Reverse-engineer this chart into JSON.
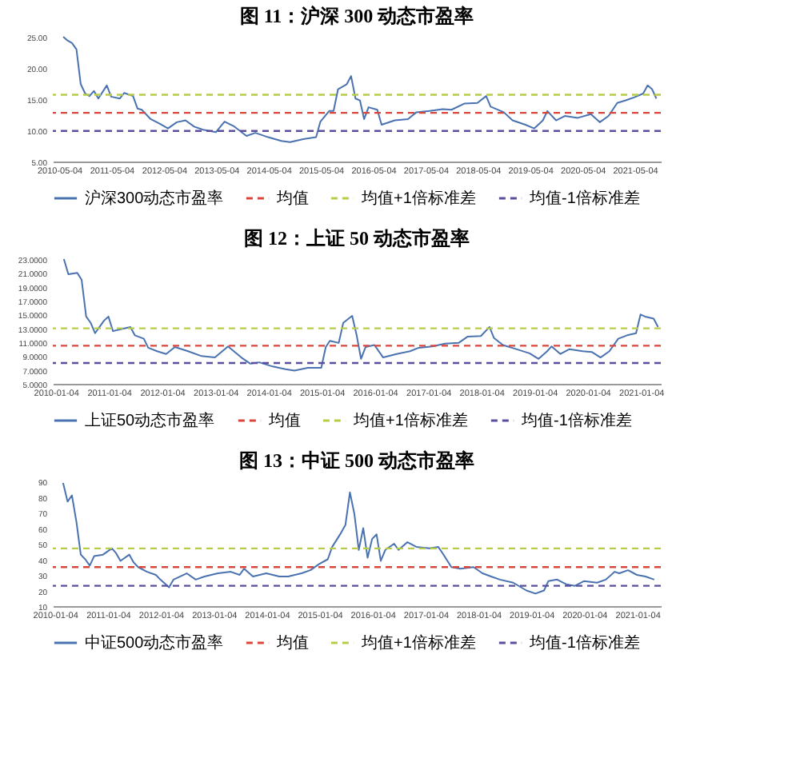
{
  "chart_data": [
    {
      "type": "line",
      "title": "图 11：沪深 300 动态市盈率",
      "legend": "bottom",
      "line_style": "solid",
      "xlim": [
        "2010-03-20",
        "2021-11-01"
      ],
      "xticks": [
        "2010-05-04",
        "2011-05-04",
        "2012-05-04",
        "2013-05-04",
        "2014-05-04",
        "2015-05-04",
        "2016-05-04",
        "2017-05-04",
        "2018-05-04",
        "2019-05-04",
        "2020-05-04",
        "2021-05-04"
      ],
      "ylim": [
        5,
        25
      ],
      "yticks": [
        {
          "value": 5,
          "label": "5.00"
        },
        {
          "value": 10,
          "label": "10.00"
        },
        {
          "value": 15,
          "label": "15.00"
        },
        {
          "value": 20,
          "label": "20.00"
        },
        {
          "value": 25,
          "label": "25.00"
        }
      ],
      "ref_lines": [
        {
          "axis": "y",
          "value": 12.8,
          "label": "均值",
          "color": "#d9463c",
          "line_style": "dashed"
        },
        {
          "axis": "y",
          "value": 15.7,
          "label": "均值+1倍标准差",
          "color": "#b8cc4a",
          "line_style": "dashed"
        },
        {
          "axis": "y",
          "value": 9.9,
          "label": "均值-1倍标准差",
          "color": "#5a4f9c",
          "line_style": "dashed"
        }
      ],
      "series": [
        {
          "name": "沪深300动态市盈率",
          "color": "#4a72b0",
          "x": [
            "2010-06",
            "2010-07",
            "2010-08",
            "2010-09",
            "2010-10",
            "2010-11",
            "2010-12",
            "2011-01",
            "2011-02",
            "2011-04",
            "2011-05",
            "2011-07",
            "2011-08",
            "2011-10",
            "2011-11",
            "2011-12",
            "2012-02",
            "2012-04",
            "2012-06",
            "2012-08",
            "2012-10",
            "2012-12",
            "2013-02",
            "2013-05",
            "2013-07",
            "2013-09",
            "2013-12",
            "2014-02",
            "2014-05",
            "2014-08",
            "2014-10",
            "2015-01",
            "2015-04",
            "2015-05",
            "2015-07",
            "2015-08",
            "2015-09",
            "2015-11",
            "2015-12",
            "2016-01",
            "2016-02",
            "2016-03",
            "2016-04",
            "2016-06",
            "2016-07",
            "2016-10",
            "2017-01",
            "2017-03",
            "2017-06",
            "2017-09",
            "2017-11",
            "2018-02",
            "2018-05",
            "2018-07",
            "2018-08",
            "2018-11",
            "2019-01",
            "2019-04",
            "2019-06",
            "2019-08",
            "2019-09",
            "2019-11",
            "2020-01",
            "2020-04",
            "2020-07",
            "2020-09",
            "2020-11",
            "2021-01",
            "2021-03",
            "2021-05",
            "2021-07",
            "2021-08",
            "2021-09",
            "2021-10"
          ],
          "values": [
            25.0,
            24.4,
            24.0,
            23.0,
            17.4,
            15.9,
            15.5,
            16.3,
            15.1,
            17.2,
            15.4,
            15.1,
            16.0,
            15.5,
            13.5,
            13.3,
            11.8,
            11.1,
            10.3,
            11.3,
            11.6,
            10.6,
            10.1,
            9.7,
            11.4,
            10.7,
            9.1,
            9.6,
            8.9,
            8.3,
            8.1,
            8.6,
            8.9,
            11.4,
            13.1,
            13.1,
            16.6,
            17.4,
            18.7,
            15.1,
            14.8,
            11.8,
            13.7,
            13.3,
            10.9,
            11.6,
            11.8,
            12.9,
            13.1,
            13.4,
            13.3,
            14.3,
            14.4,
            15.5,
            13.8,
            12.9,
            11.6,
            10.9,
            10.3,
            11.6,
            13.1,
            11.6,
            12.3,
            12.0,
            12.6,
            11.3,
            12.3,
            14.4,
            14.8,
            15.3,
            15.9,
            17.2,
            16.6,
            15.1
          ]
        }
      ]
    },
    {
      "type": "line",
      "title": "图 12：上证 50 动态市盈率",
      "legend": "bottom",
      "line_style": "solid",
      "xlim": [
        "2009-12-15",
        "2021-05-20"
      ],
      "xticks": [
        "2010-01-04",
        "2011-01-04",
        "2012-01-04",
        "2013-01-04",
        "2014-01-04",
        "2015-01-04",
        "2016-01-04",
        "2017-01-04",
        "2018-01-04",
        "2019-01-04",
        "2020-01-04",
        "2021-01-04"
      ],
      "ylim": [
        5,
        23
      ],
      "yticks": [
        {
          "value": 5,
          "label": "5.0000"
        },
        {
          "value": 7,
          "label": "7.0000"
        },
        {
          "value": 9,
          "label": "9.0000"
        },
        {
          "value": 11,
          "label": "11.0000"
        },
        {
          "value": 13,
          "label": "13.0000"
        },
        {
          "value": 15,
          "label": "15.0000"
        },
        {
          "value": 17,
          "label": "17.0000"
        },
        {
          "value": 19,
          "label": "19.0000"
        },
        {
          "value": 21,
          "label": "21.0000"
        },
        {
          "value": 23,
          "label": "23.0000"
        }
      ],
      "ref_lines": [
        {
          "axis": "y",
          "value": 10.5,
          "label": "均值",
          "color": "#d9463c",
          "line_style": "dashed"
        },
        {
          "axis": "y",
          "value": 13.0,
          "label": "均值+1倍标准差",
          "color": "#b8cc4a",
          "line_style": "dashed"
        },
        {
          "axis": "y",
          "value": 8.0,
          "label": "均值-1倍标准差",
          "color": "#5a4f9c",
          "line_style": "dashed"
        }
      ],
      "series": [
        {
          "name": "上证50动态市盈率",
          "color": "#4a72b0",
          "x": [
            "2010-03",
            "2010-04",
            "2010-06",
            "2010-07",
            "2010-08",
            "2010-09",
            "2010-10",
            "2010-12",
            "2011-01",
            "2011-02",
            "2011-04",
            "2011-06",
            "2011-07",
            "2011-09",
            "2011-10",
            "2011-12",
            "2012-02",
            "2012-04",
            "2012-07",
            "2012-10",
            "2013-01",
            "2013-04",
            "2013-07",
            "2013-09",
            "2013-11",
            "2014-02",
            "2014-05",
            "2014-07",
            "2014-10",
            "2015-01",
            "2015-02",
            "2015-03",
            "2015-05",
            "2015-06",
            "2015-08",
            "2015-09",
            "2015-10",
            "2015-11",
            "2016-01",
            "2016-03",
            "2016-06",
            "2016-09",
            "2016-11",
            "2017-02",
            "2017-05",
            "2017-08",
            "2017-10",
            "2018-01",
            "2018-03",
            "2018-04",
            "2018-06",
            "2018-09",
            "2018-12",
            "2019-02",
            "2019-04",
            "2019-05",
            "2019-07",
            "2019-09",
            "2019-12",
            "2020-02",
            "2020-04",
            "2020-06",
            "2020-08",
            "2020-10",
            "2020-12",
            "2021-01",
            "2021-02",
            "2021-04",
            "2021-05"
          ],
          "values": [
            23.0,
            20.8,
            21.0,
            20.0,
            14.7,
            13.8,
            12.3,
            14.1,
            14.7,
            12.6,
            12.9,
            13.2,
            12.0,
            11.5,
            10.2,
            9.7,
            9.3,
            10.3,
            9.7,
            9.0,
            8.8,
            10.4,
            8.8,
            7.9,
            8.1,
            7.5,
            7.1,
            6.9,
            7.3,
            7.3,
            10.3,
            11.2,
            10.9,
            13.8,
            14.8,
            12.0,
            8.6,
            10.3,
            10.6,
            8.8,
            9.3,
            9.7,
            10.2,
            10.4,
            10.8,
            10.9,
            11.8,
            11.9,
            13.2,
            11.6,
            10.6,
            10.0,
            9.4,
            8.6,
            9.7,
            10.4,
            9.3,
            10.0,
            9.7,
            9.6,
            8.8,
            9.7,
            11.5,
            12.0,
            12.3,
            15.0,
            14.7,
            14.4,
            13.2
          ]
        }
      ]
    },
    {
      "type": "line",
      "title": "图 13：中证 500 动态市盈率",
      "legend": "bottom",
      "line_style": "solid",
      "xlim": [
        "2009-12-20",
        "2021-06-15"
      ],
      "xticks": [
        "2010-01-04",
        "2011-01-04",
        "2012-01-04",
        "2013-01-04",
        "2014-01-04",
        "2015-01-04",
        "2016-01-04",
        "2017-01-04",
        "2018-01-04",
        "2019-01-04",
        "2020-01-04",
        "2021-01-04"
      ],
      "ylim": [
        10,
        90
      ],
      "yticks": [
        10,
        20,
        30,
        40,
        50,
        60,
        70,
        80,
        90
      ],
      "ref_lines": [
        {
          "axis": "y",
          "value": 35,
          "label": "均值",
          "color": "#d9463c",
          "line_style": "dashed"
        },
        {
          "axis": "y",
          "value": 47,
          "label": "均值+1倍标准差",
          "color": "#b8cc4a",
          "line_style": "dashed"
        },
        {
          "axis": "y",
          "value": 23,
          "label": "均值-1倍标准差",
          "color": "#5a4f9c",
          "line_style": "dashed"
        }
      ],
      "series": [
        {
          "name": "中证500动态市盈率",
          "color": "#4a72b0",
          "x": [
            "2010-03",
            "2010-04",
            "2010-05",
            "2010-06",
            "2010-07",
            "2010-08",
            "2010-09",
            "2010-10",
            "2010-12",
            "2011-02",
            "2011-03",
            "2011-04",
            "2011-06",
            "2011-07",
            "2011-08",
            "2011-10",
            "2011-12",
            "2012-01",
            "2012-03",
            "2012-04",
            "2012-07",
            "2012-09",
            "2012-11",
            "2013-02",
            "2013-05",
            "2013-07",
            "2013-08",
            "2013-10",
            "2014-01",
            "2014-04",
            "2014-06",
            "2014-09",
            "2014-11",
            "2015-01",
            "2015-03",
            "2015-04",
            "2015-06",
            "2015-07",
            "2015-08",
            "2015-09",
            "2015-10",
            "2015-11",
            "2015-12",
            "2016-01",
            "2016-02",
            "2016-03",
            "2016-04",
            "2016-06",
            "2016-07",
            "2016-09",
            "2016-11",
            "2017-02",
            "2017-04",
            "2017-05",
            "2017-07",
            "2017-09",
            "2017-12",
            "2018-02",
            "2018-04",
            "2018-06",
            "2018-09",
            "2018-12",
            "2019-02",
            "2019-04",
            "2019-05",
            "2019-07",
            "2019-09",
            "2019-11",
            "2020-01",
            "2020-04",
            "2020-06",
            "2020-08",
            "2020-09",
            "2020-11",
            "2021-01",
            "2021-03",
            "2021-05"
          ],
          "values": [
            89,
            77,
            81,
            64,
            43,
            40,
            36,
            42,
            43,
            47,
            44,
            39,
            43,
            38,
            35,
            32,
            30,
            27,
            22,
            27,
            31,
            27,
            29,
            31,
            32,
            30,
            34,
            29,
            31,
            29,
            29,
            31,
            33,
            37,
            40,
            48,
            57,
            62,
            83,
            69,
            46,
            60,
            41,
            53,
            56,
            39,
            46,
            50,
            46,
            51,
            48,
            47,
            48,
            44,
            35,
            34,
            35,
            31,
            29,
            27,
            25,
            20,
            18,
            20,
            26,
            27,
            24,
            23,
            26,
            25,
            27,
            32,
            31,
            33,
            30,
            29,
            27
          ]
        }
      ]
    }
  ]
}
